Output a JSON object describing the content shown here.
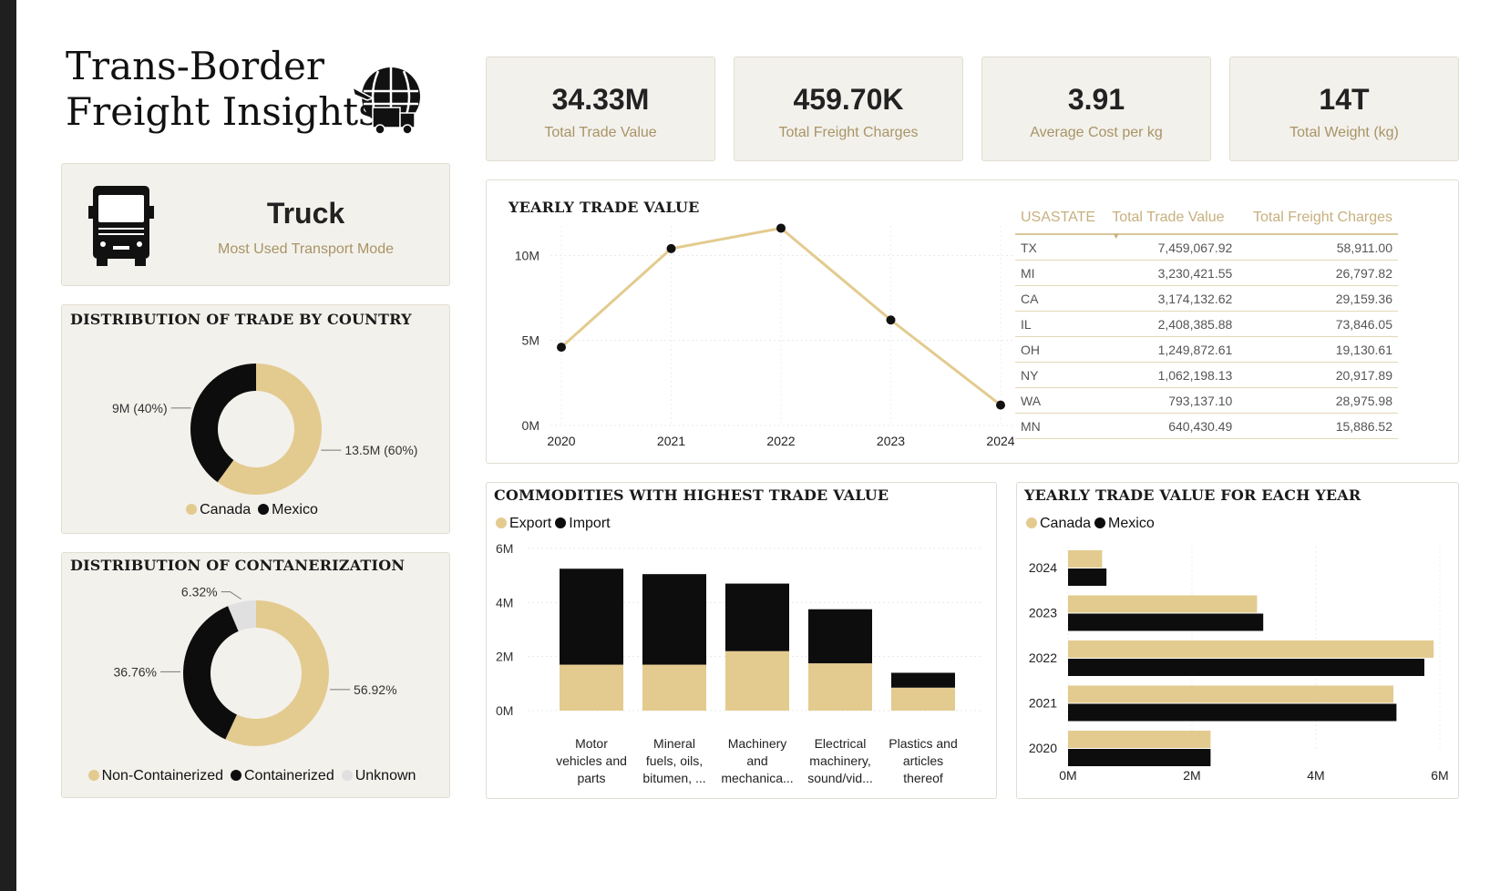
{
  "title": {
    "line1": "Trans-Border",
    "line2": "Freight Insights"
  },
  "kpis": [
    {
      "value": "34.33M",
      "label": "Total Trade Value"
    },
    {
      "value": "459.70K",
      "label": "Total Freight Charges"
    },
    {
      "value": "3.91",
      "label": "Average Cost per kg"
    },
    {
      "value": "14T",
      "label": "Total Weight (kg)"
    }
  ],
  "transport": {
    "value": "Truck",
    "label": "Most Used Transport Mode"
  },
  "colors": {
    "gold": "#e3cb8f",
    "black": "#0d0d0d",
    "grey": "#e0e0e0",
    "accent_text": "#a89466"
  },
  "chart_data": [
    {
      "id": "country",
      "type": "pie",
      "title": "DISTRIBUTION OF TRADE BY COUNTRY",
      "donut": true,
      "labels": [
        "Canada",
        "Mexico"
      ],
      "values": [
        13.5,
        9
      ],
      "data_labels": [
        "13.5M (60%)",
        "9M (40%)"
      ],
      "legend": "bottom"
    },
    {
      "id": "container",
      "type": "pie",
      "title": "DISTRIBUTION OF CONTANERIZATION",
      "donut": true,
      "labels": [
        "Non-Containerized",
        "Containerized",
        "Unknown"
      ],
      "values": [
        56.92,
        36.76,
        6.32
      ],
      "data_labels": [
        "56.92%",
        "36.76%",
        "6.32%"
      ],
      "legend": "bottom"
    },
    {
      "id": "yearly",
      "type": "line",
      "title": "YEARLY TRADE VALUE",
      "x": [
        "2020",
        "2021",
        "2022",
        "2023",
        "2024"
      ],
      "y": [
        4.6,
        10.4,
        11.6,
        6.2,
        1.2
      ],
      "ylim": [
        0,
        12
      ],
      "yticks": [
        "0M",
        "5M",
        "10M"
      ],
      "grid": true
    },
    {
      "id": "commodities",
      "type": "bar",
      "stacked": true,
      "title": "COMMODITIES WITH HIGHEST TRADE VALUE",
      "categories": [
        [
          "Motor",
          "vehicles and",
          "parts"
        ],
        [
          "Mineral",
          "fuels, oils,",
          "bitumen, ..."
        ],
        [
          "Machinery",
          "and",
          "mechanica..."
        ],
        [
          "Electrical",
          "machinery,",
          "sound/vid..."
        ],
        [
          "Plastics and",
          "articles",
          "thereof"
        ]
      ],
      "series": [
        {
          "name": "Export",
          "values": [
            1.7,
            1.7,
            2.2,
            1.75,
            0.85
          ]
        },
        {
          "name": "Import",
          "values": [
            3.55,
            3.35,
            2.5,
            2.0,
            0.55
          ]
        }
      ],
      "ylim": [
        0,
        6
      ],
      "yticks": [
        "0M",
        "2M",
        "4M",
        "6M"
      ],
      "legend": "top-left"
    },
    {
      "id": "yearly_by_country",
      "type": "bar",
      "orientation": "horizontal",
      "title": "YEARLY TRADE VALUE FOR EACH YEAR",
      "categories": [
        "2024",
        "2023",
        "2022",
        "2021",
        "2020"
      ],
      "series": [
        {
          "name": "Canada",
          "values": [
            0.55,
            3.05,
            5.9,
            5.25,
            2.3
          ]
        },
        {
          "name": "Mexico",
          "values": [
            0.62,
            3.15,
            5.75,
            5.3,
            2.3
          ]
        }
      ],
      "xlim": [
        0,
        6
      ],
      "xticks": [
        "0M",
        "2M",
        "4M",
        "6M"
      ],
      "legend": "top-left"
    },
    {
      "id": "state_table",
      "type": "table",
      "columns": [
        "USASTATE",
        "Total Trade Value",
        "Total Freight Charges"
      ],
      "rows": [
        [
          "TX",
          "7,459,067.92",
          "58,911.00"
        ],
        [
          "MI",
          "3,230,421.55",
          "26,797.82"
        ],
        [
          "CA",
          "3,174,132.62",
          "29,159.36"
        ],
        [
          "IL",
          "2,408,385.88",
          "73,846.05"
        ],
        [
          "OH",
          "1,249,872.61",
          "19,130.61"
        ],
        [
          "NY",
          "1,062,198.13",
          "20,917.89"
        ],
        [
          "WA",
          "793,137.10",
          "28,975.98"
        ],
        [
          "MN",
          "640,430.49",
          "15,886.52"
        ]
      ]
    }
  ]
}
